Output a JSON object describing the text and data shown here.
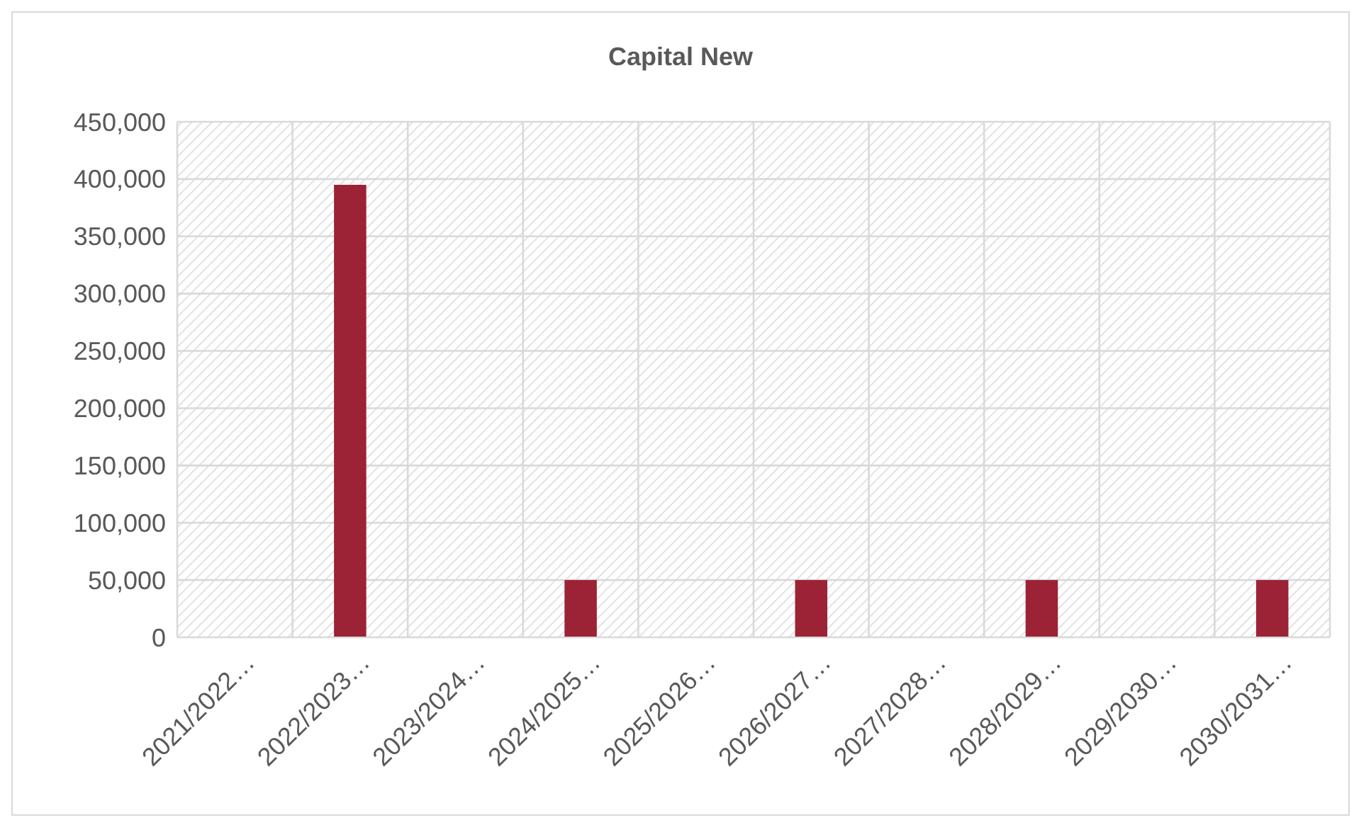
{
  "chart_data": {
    "type": "bar",
    "title": "Capital New",
    "categories": [
      "2021/2022…",
      "2022/2023…",
      "2023/2024…",
      "2024/2025…",
      "2025/2026…",
      "2026/2027…",
      "2027/2028…",
      "2028/2029…",
      "2029/2030…",
      "2030/2031…"
    ],
    "values": [
      0,
      395000,
      0,
      50000,
      0,
      50000,
      0,
      50000,
      0,
      50000
    ],
    "color": "#9b2335",
    "ylim": [
      0,
      450000
    ],
    "yticks": [
      {
        "value": 0,
        "label": "0"
      },
      {
        "value": 50000,
        "label": "50,000"
      },
      {
        "value": 100000,
        "label": "100,000"
      },
      {
        "value": 150000,
        "label": "150,000"
      },
      {
        "value": 200000,
        "label": "200,000"
      },
      {
        "value": 250000,
        "label": "250,000"
      },
      {
        "value": 300000,
        "label": "300,000"
      },
      {
        "value": 350000,
        "label": "350,000"
      },
      {
        "value": 400000,
        "label": "400,000"
      },
      {
        "value": 450000,
        "label": "450,000"
      }
    ],
    "grid": true
  }
}
